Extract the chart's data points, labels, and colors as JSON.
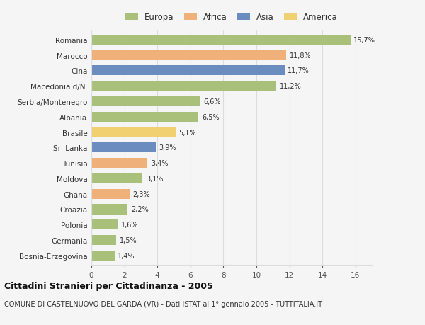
{
  "categories": [
    "Romania",
    "Marocco",
    "Cina",
    "Macedonia d/N.",
    "Serbia/Montenegro",
    "Albania",
    "Brasile",
    "Sri Lanka",
    "Tunisia",
    "Moldova",
    "Ghana",
    "Croazia",
    "Polonia",
    "Germania",
    "Bosnia-Erzegovina"
  ],
  "values": [
    15.7,
    11.8,
    11.7,
    11.2,
    6.6,
    6.5,
    5.1,
    3.9,
    3.4,
    3.1,
    2.3,
    2.2,
    1.6,
    1.5,
    1.4
  ],
  "labels": [
    "15,7%",
    "11,8%",
    "11,7%",
    "11,2%",
    "6,6%",
    "6,5%",
    "5,1%",
    "3,9%",
    "3,4%",
    "3,1%",
    "2,3%",
    "2,2%",
    "1,6%",
    "1,5%",
    "1,4%"
  ],
  "colors": [
    "#a8c07a",
    "#f0b07a",
    "#6b8cbe",
    "#a8c07a",
    "#a8c07a",
    "#a8c07a",
    "#f0d070",
    "#6b8cbe",
    "#f0b07a",
    "#a8c07a",
    "#f0b07a",
    "#a8c07a",
    "#a8c07a",
    "#a8c07a",
    "#a8c07a"
  ],
  "legend_labels": [
    "Europa",
    "Africa",
    "Asia",
    "America"
  ],
  "legend_colors": [
    "#a8c07a",
    "#f0b07a",
    "#6b8cbe",
    "#f0d070"
  ],
  "xlim": [
    0,
    17
  ],
  "xticks": [
    0,
    2,
    4,
    6,
    8,
    10,
    12,
    14,
    16
  ],
  "title": "Cittadini Stranieri per Cittadinanza - 2005",
  "subtitle": "COMUNE DI CASTELNUOVO DEL GARDA (VR) - Dati ISTAT al 1° gennaio 2005 - TUTTITALIA.IT",
  "background_color": "#f5f5f5",
  "grid_color": "#dddddd"
}
